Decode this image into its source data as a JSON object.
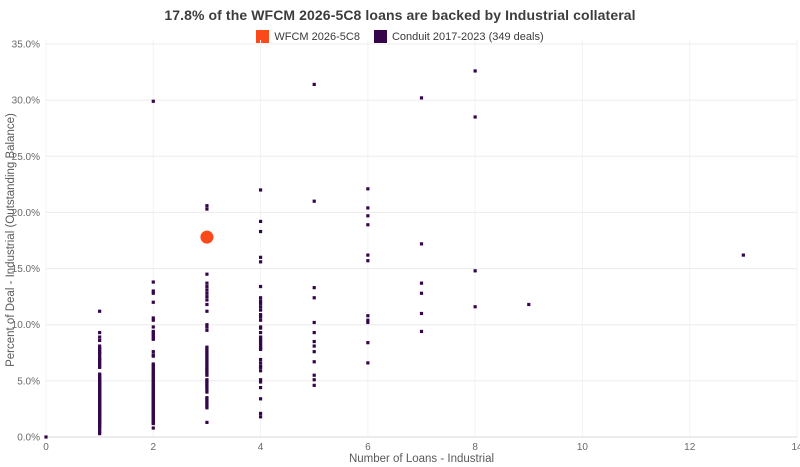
{
  "title": "17.8% of the WFCM 2026-5C8 loans are backed by Industrial collateral",
  "legend": {
    "items": [
      {
        "label": "WFCM 2026-5C8",
        "color": "#FB4A1A"
      },
      {
        "label": "Conduit 2017-2023 (349 deals)",
        "color": "#35064A"
      }
    ]
  },
  "chart_data": {
    "type": "scatter",
    "title": "17.8% of the WFCM 2026-5C8 loans are backed by Industrial collateral",
    "xlabel": "Number of Loans - Industrial",
    "ylabel": "Percent of Deal - Industrial (Outstanding Balance)",
    "xlim": [
      0,
      14
    ],
    "ylim": [
      0,
      35
    ],
    "grid": true,
    "legend_position": "top-center",
    "x_ticks": [
      0,
      2,
      4,
      6,
      8,
      10,
      12,
      14
    ],
    "y_ticks": [
      {
        "value": 0,
        "label": "0.0%"
      },
      {
        "value": 5,
        "label": "5.0%"
      },
      {
        "value": 10,
        "label": "10.0%"
      },
      {
        "value": 15,
        "label": "15.0%"
      },
      {
        "value": 20,
        "label": "20.0%"
      },
      {
        "value": 25,
        "label": "25.0%"
      },
      {
        "value": 30,
        "label": "30.0%"
      },
      {
        "value": 35,
        "label": "35.0%"
      }
    ],
    "series": [
      {
        "name": "Conduit 2017-2023 (349 deals)",
        "color": "#35064A",
        "marker": "square",
        "marker_px": 3.2,
        "points_by_x": {
          "0": [
            0.0
          ],
          "1": [
            11.2,
            9.3,
            8.9,
            8.6,
            8.1,
            7.9,
            7.8,
            7.6,
            7.5,
            7.4,
            7.2,
            7.0,
            6.9,
            6.8,
            6.6,
            6.5,
            6.3,
            6.2,
            5.6,
            5.5,
            5.4,
            5.3,
            5.2,
            5.1,
            5.0,
            4.95,
            4.9,
            4.8,
            4.75,
            4.7,
            4.6,
            4.55,
            4.5,
            4.4,
            4.35,
            4.3,
            4.2,
            4.15,
            4.1,
            4.0,
            3.95,
            3.9,
            3.85,
            3.75,
            3.7,
            3.65,
            3.6,
            3.5,
            3.45,
            3.4,
            3.35,
            3.3,
            3.2,
            3.15,
            3.1,
            3.0,
            2.95,
            2.9,
            2.85,
            2.8,
            2.7,
            2.65,
            2.6,
            2.5,
            2.45,
            2.4,
            2.35,
            2.3,
            2.2,
            2.15,
            2.1,
            2.0,
            1.95,
            1.9,
            1.8,
            1.75,
            1.7,
            1.6,
            1.5,
            1.45,
            1.4,
            1.3,
            1.2,
            1.1,
            1.0,
            0.9,
            0.8,
            0.6,
            0.45,
            0.3
          ],
          "2": [
            29.9,
            13.8,
            13.0,
            12.8,
            12.0,
            10.6,
            10.4,
            9.8,
            9.4,
            9.3,
            9.1,
            9.0,
            8.8,
            8.7,
            7.6,
            7.3,
            7.2,
            6.5,
            6.4,
            6.25,
            6.1,
            5.95,
            5.85,
            5.7,
            5.6,
            5.5,
            5.35,
            5.25,
            5.1,
            5.0,
            4.9,
            4.8,
            4.7,
            4.6,
            4.5,
            4.4,
            4.3,
            4.2,
            4.1,
            4.0,
            3.9,
            3.85,
            3.75,
            3.65,
            3.6,
            3.5,
            3.4,
            3.3,
            3.25,
            3.15,
            3.05,
            3.0,
            2.9,
            2.8,
            2.7,
            2.65,
            2.55,
            2.45,
            2.4,
            2.3,
            2.2,
            2.1,
            2.05,
            1.95,
            1.85,
            1.8,
            1.7,
            1.6,
            1.5,
            1.45,
            1.35,
            1.25,
            1.2,
            0.8
          ],
          "3": [
            20.6,
            20.3,
            14.5,
            13.7,
            13.4,
            13.1,
            12.8,
            12.5,
            12.2,
            11.8,
            11.2,
            10.0,
            9.8,
            9.5,
            8.0,
            7.9,
            7.7,
            7.6,
            7.45,
            7.3,
            7.2,
            7.05,
            6.9,
            6.8,
            6.65,
            6.5,
            6.4,
            6.25,
            6.1,
            6.0,
            5.9,
            5.75,
            5.6,
            5.5,
            5.1,
            5.0,
            4.9,
            4.75,
            4.6,
            4.5,
            4.35,
            4.2,
            4.0,
            3.5,
            3.4,
            3.3,
            3.15,
            3.0,
            2.9,
            2.75,
            2.6,
            1.3
          ],
          "4": [
            22.0,
            19.2,
            18.3,
            16.0,
            15.6,
            13.4,
            12.4,
            12.1,
            11.9,
            11.6,
            11.3,
            10.9,
            10.7,
            10.4,
            9.8,
            9.7,
            9.3,
            8.9,
            8.8,
            8.6,
            8.5,
            8.3,
            8.2,
            8.0,
            7.9,
            7.8,
            6.9,
            6.6,
            6.3,
            6.2,
            5.9,
            5.1,
            4.9,
            4.4,
            3.4,
            2.1,
            1.8
          ],
          "5": [
            31.4,
            21.0,
            13.3,
            12.4,
            10.2,
            9.3,
            8.5,
            8.1,
            7.6,
            6.7,
            5.5,
            5.1,
            4.6
          ],
          "6": [
            22.1,
            20.4,
            19.7,
            18.9,
            16.2,
            15.7,
            10.8,
            10.4,
            10.2,
            8.4,
            6.6
          ],
          "7": [
            30.2,
            17.2,
            13.7,
            12.8,
            11.0,
            9.4
          ],
          "8": [
            32.6,
            28.5,
            14.8,
            11.6
          ],
          "9": [
            11.8
          ],
          "13": [
            16.2
          ]
        }
      },
      {
        "name": "WFCM 2026-5C8",
        "color": "#FB4A1A",
        "marker": "circle",
        "marker_px": 13,
        "points": [
          [
            3,
            17.8
          ]
        ]
      }
    ]
  },
  "colors": {
    "wfcm_orange": "#FB4A1A",
    "conduit_purple": "#35064A",
    "grid_h": "#ececec",
    "grid_v": "#f3f3f3",
    "axis_line": "#d9d9d9",
    "tick_text": "#696969"
  }
}
